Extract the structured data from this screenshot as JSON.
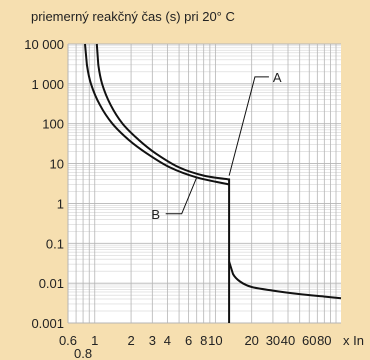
{
  "colors": {
    "background": "#f6dfb0",
    "plot_area": "#ffffff",
    "grid": "#b5b5b5",
    "curve": "#111111"
  },
  "chart_data": {
    "type": "line",
    "title": "priemerný reakčný čas (s) pri 20° C",
    "xlabel": "x In",
    "ylabel": "",
    "x_scale": "log",
    "y_scale": "log",
    "xlim": [
      0.6,
      110
    ],
    "ylim": [
      0.001,
      10000
    ],
    "grid": true,
    "y_ticks": [
      {
        "value": 10000,
        "label": "10 000"
      },
      {
        "value": 1000,
        "label": "1 000"
      },
      {
        "value": 100,
        "label": "100"
      },
      {
        "value": 10,
        "label": "10"
      },
      {
        "value": 1,
        "label": "1"
      },
      {
        "value": 0.1,
        "label": "0.1"
      },
      {
        "value": 0.01,
        "label": "0.01"
      },
      {
        "value": 0.001,
        "label": "0.001"
      }
    ],
    "x_ticks": [
      {
        "value": 0.6,
        "label": "0.6"
      },
      {
        "value": 1,
        "label": "1"
      },
      {
        "value": 2,
        "label": "2"
      },
      {
        "value": 3,
        "label": "3"
      },
      {
        "value": 4,
        "label": "4"
      },
      {
        "value": 6,
        "label": "6"
      },
      {
        "value": 8,
        "label": "8"
      },
      {
        "value": 10,
        "label": "10"
      },
      {
        "value": 20,
        "label": "20"
      },
      {
        "value": 30,
        "label": "30"
      },
      {
        "value": 40,
        "label": "40"
      },
      {
        "value": 60,
        "label": "60"
      },
      {
        "value": 80,
        "label": "80"
      }
    ],
    "x_tick_label_below": {
      "value": 0.8,
      "label": "0.8"
    },
    "series": [
      {
        "name": "A",
        "points": [
          [
            1.04,
            10000
          ],
          [
            1.07,
            3000
          ],
          [
            1.15,
            1000
          ],
          [
            1.35,
            300
          ],
          [
            1.7,
            100
          ],
          [
            2.3,
            40
          ],
          [
            3.2,
            18
          ],
          [
            5,
            8
          ],
          [
            8,
            5
          ],
          [
            13,
            4
          ],
          [
            13,
            0.001
          ]
        ]
      },
      {
        "name": "B",
        "points": [
          [
            0.83,
            10000
          ],
          [
            0.86,
            3000
          ],
          [
            0.93,
            1000
          ],
          [
            1.1,
            300
          ],
          [
            1.4,
            100
          ],
          [
            1.9,
            40
          ],
          [
            2.7,
            18
          ],
          [
            4.2,
            8
          ],
          [
            7,
            4.5
          ],
          [
            13,
            3
          ]
        ]
      },
      {
        "name": "",
        "points": [
          [
            13,
            0.035
          ],
          [
            14,
            0.017
          ],
          [
            16,
            0.011
          ],
          [
            20,
            0.008
          ],
          [
            30,
            0.0065
          ],
          [
            50,
            0.0053
          ],
          [
            80,
            0.0046
          ],
          [
            110,
            0.0042
          ]
        ]
      }
    ],
    "annotations": [
      {
        "label": "A",
        "series": "A",
        "at_x": 13,
        "at_y": 5,
        "label_x": 30,
        "label_y": 1500
      },
      {
        "label": "B",
        "series": "B",
        "at_x": 7,
        "at_y": 4.5,
        "label_x": 3.2,
        "label_y": 0.55
      }
    ]
  }
}
